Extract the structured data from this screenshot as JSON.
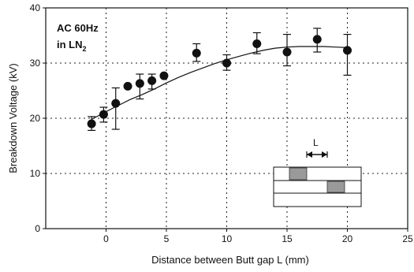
{
  "chart_data": {
    "type": "scatter",
    "title": "",
    "xlabel": "Distance between Butt gap L (mm)",
    "ylabel": "Breakdown Voltage (kV)",
    "xlim": [
      -5,
      25
    ],
    "ylim": [
      0,
      40
    ],
    "x_ticks": [
      0,
      5,
      10,
      15,
      20,
      25
    ],
    "y_ticks": [
      0,
      10,
      20,
      30,
      40
    ],
    "grid": true,
    "annotation_lines": [
      "AC 60Hz",
      "in LN"
    ],
    "annotation_subscript": "2",
    "inset_label": "L",
    "series": [
      {
        "points": [
          {
            "x": -1.2,
            "y": 19.0,
            "err_low": 17.8,
            "err_high": 20.3
          },
          {
            "x": -0.2,
            "y": 20.7,
            "err_low": 19.3,
            "err_high": 22.0
          },
          {
            "x": 0.8,
            "y": 22.7,
            "err_low": 18.0,
            "err_high": 25.5
          },
          {
            "x": 1.8,
            "y": 25.8,
            "err_low": null,
            "err_high": null
          },
          {
            "x": 2.8,
            "y": 26.3,
            "err_low": 23.5,
            "err_high": 28.0
          },
          {
            "x": 3.8,
            "y": 26.8,
            "err_low": 25.3,
            "err_high": 28.0
          },
          {
            "x": 4.8,
            "y": 27.7,
            "err_low": null,
            "err_high": null
          },
          {
            "x": 7.5,
            "y": 31.8,
            "err_low": 30.3,
            "err_high": 33.5
          },
          {
            "x": 10.0,
            "y": 30.0,
            "err_low": 28.7,
            "err_high": 31.5
          },
          {
            "x": 12.5,
            "y": 33.5,
            "err_low": 31.7,
            "err_high": 35.5
          },
          {
            "x": 15.0,
            "y": 32.0,
            "err_low": 29.5,
            "err_high": 35.2
          },
          {
            "x": 17.5,
            "y": 34.3,
            "err_low": 32.0,
            "err_high": 36.3
          },
          {
            "x": 20.0,
            "y": 32.3,
            "err_low": 27.8,
            "err_high": 35.2
          }
        ]
      }
    ],
    "fit_curve": {
      "x": [
        -1.2,
        0,
        1,
        2,
        3,
        4,
        5,
        6,
        7,
        8,
        9,
        10,
        11,
        12,
        13,
        14,
        15,
        16,
        17,
        18,
        19,
        20
      ],
      "y": [
        19.8,
        21.2,
        22.3,
        23.4,
        24.3,
        25.3,
        26.4,
        27.4,
        28.3,
        29.1,
        29.9,
        30.6,
        31.2,
        31.8,
        32.3,
        32.7,
        32.9,
        33.0,
        33.0,
        33.0,
        32.9,
        32.8
      ]
    }
  }
}
